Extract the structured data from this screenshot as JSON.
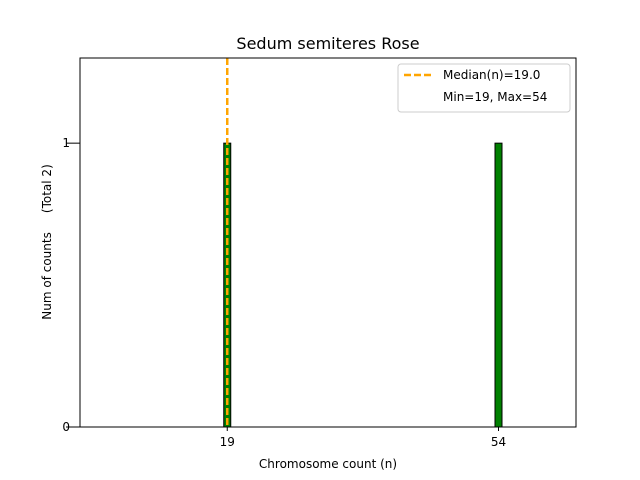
{
  "chart_data": {
    "type": "bar",
    "title": "Sedum semiteres Rose",
    "xlabel": "Chromosome count (n)",
    "ylabel": "Num of counts     (Total 2)",
    "x_ticks": [
      "19",
      "54"
    ],
    "y_ticks": [
      "0",
      "1"
    ],
    "xlim": [
      0,
      64
    ],
    "ylim": [
      0,
      1.3
    ],
    "bars": [
      {
        "x": 19,
        "value": 1
      },
      {
        "x": 54,
        "value": 1
      }
    ],
    "bar_color": "#008000",
    "median": {
      "value": 19.0,
      "color": "#FFA500",
      "label": "Median(n)=19.0"
    },
    "legend": {
      "placement": "top-right",
      "entries": [
        "Median(n)=19.0",
        "Min=19, Max=54"
      ]
    },
    "grid": false
  }
}
